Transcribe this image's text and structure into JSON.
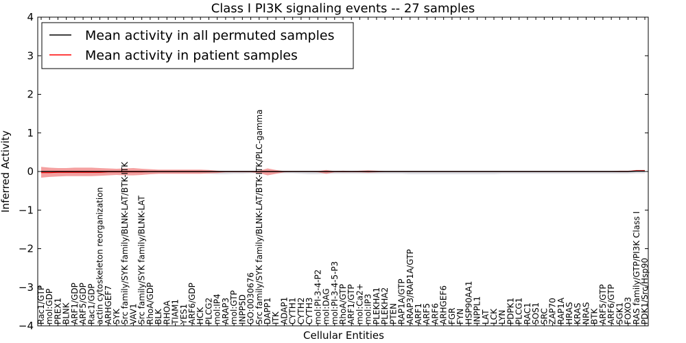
{
  "chart_data": {
    "type": "line",
    "title": "Class I PI3K signaling events -- 27 samples",
    "xlabel": "Cellular Entities",
    "ylabel": "Inferred Activity",
    "ylim": [
      -4,
      4
    ],
    "yticks": [
      -4,
      -3,
      -2,
      -1,
      0,
      1,
      2,
      3,
      4
    ],
    "ytick_labels": [
      "−4",
      "−3",
      "−2",
      "−1",
      "0",
      "1",
      "2",
      "3",
      "4"
    ],
    "legend": {
      "placement": "top-left",
      "entries": [
        {
          "label": "Mean activity in all permuted samples",
          "color": "#000000"
        },
        {
          "label": "Mean activity in patient samples",
          "color": "#ff0000"
        }
      ]
    },
    "colors": {
      "patient": "#ff0000",
      "patient_band": "#f08080",
      "permuted_band": "#c8c8d2",
      "permuted": "#000000"
    },
    "categories": [
      "Rac1/GTP",
      "mol:GDP",
      "PREX1",
      "BLNK",
      "ARF1/GDP",
      "ARF5/GDP",
      "Rac1/GDP",
      "actin cytoskeleton reorganization",
      "ARHGEF7",
      "SYK",
      "Src family/SYK family/BLNK-LAT/BTK-ITK",
      "VAV1",
      "Src family/SYK family/BLNK-LAT",
      "RhoA/GDP",
      "BLK",
      "RHOA",
      "TIAM1",
      "YES1",
      "ARF6/GDP",
      "HCK",
      "PLCG2",
      "mol:IP4",
      "ARAP3",
      "mol:GTP",
      "INPP5D",
      "GO:0030676",
      "Src family/SYK family/BLNK-LAT/BTK-ITK/PLC-gamma",
      "DAPP1",
      "ITK",
      "ADAP1",
      "CYTH1",
      "CYTH2",
      "CYTH3",
      "mol:PI-3-4-P2",
      "mol:DAG",
      "mol:PI-3-4-5-P3",
      "RhoA/GTP",
      "ARF1/GTP",
      "mol:Ca2+",
      "mol:IP3",
      "PLEKHA1",
      "PLEKHA2",
      "PTEN",
      "RAP1A/GTP",
      "ARAP3/RAP1A/GTP",
      "ARF1",
      "ARF5",
      "ARF6",
      "ARHGEF6",
      "FGR",
      "FYN",
      "HSP90AA1",
      "INPPL1",
      "LAT",
      "LCK",
      "LYN",
      "PDPK1",
      "PLCG1",
      "RAC1",
      "SOS1",
      "SRC",
      "ZAP70",
      "RAP1A",
      "HRAS",
      "KRAS",
      "NRAS",
      "BTK",
      "ARF5/GTP",
      "ARF6/GTP",
      "SGK1",
      "FOXO3",
      "RAS family/GTP/PI3K Class I",
      "PDK1/Src/Hsp90"
    ],
    "series": [
      {
        "name": "Mean activity in patient samples",
        "color": "#ff0000",
        "values": [
          -0.03,
          -0.03,
          -0.02,
          -0.02,
          -0.02,
          -0.02,
          -0.02,
          -0.02,
          -0.01,
          -0.01,
          -0.01,
          -0.01,
          -0.01,
          0,
          0,
          0,
          0,
          0,
          0,
          0,
          0,
          0,
          0,
          0,
          0,
          0,
          0,
          0,
          0,
          0,
          0,
          0,
          0,
          0,
          0,
          0,
          0,
          0,
          0,
          0,
          0,
          0,
          0,
          0,
          0,
          0,
          0,
          0,
          0,
          0,
          0,
          0,
          0,
          0,
          0,
          0,
          0,
          0,
          0,
          0,
          0,
          0,
          0,
          0,
          0,
          0,
          0,
          0,
          0,
          0,
          0,
          0.02,
          0.02
        ],
        "band_upper": [
          0.12,
          0.1,
          0.09,
          0.09,
          0.1,
          0.1,
          0.1,
          0.09,
          0.08,
          0.07,
          0.08,
          0.09,
          0.07,
          0.06,
          0.05,
          0.05,
          0.05,
          0.05,
          0.05,
          0.05,
          0.04,
          0.02,
          0.01,
          0.01,
          0.01,
          0.01,
          0.02,
          0.08,
          0.04,
          0.01,
          0.01,
          0.01,
          0.01,
          0.01,
          0.04,
          0.01,
          0.02,
          0.01,
          0.02,
          0.03,
          0.02,
          0.01,
          0.01,
          0.01,
          0.01,
          0.01,
          0.01,
          0.01,
          0.01,
          0.01,
          0.01,
          0.01,
          0.01,
          0.01,
          0.01,
          0.01,
          0.01,
          0.01,
          0.01,
          0.01,
          0.01,
          0.01,
          0.01,
          0.01,
          0.01,
          0.01,
          0.01,
          0.01,
          0.01,
          0.02,
          0.02,
          0.04,
          0.04
        ],
        "band_lower": [
          -0.16,
          -0.14,
          -0.13,
          -0.12,
          -0.12,
          -0.12,
          -0.12,
          -0.11,
          -0.1,
          -0.09,
          -0.1,
          -0.1,
          -0.09,
          -0.07,
          -0.06,
          -0.06,
          -0.06,
          -0.06,
          -0.06,
          -0.06,
          -0.05,
          -0.04,
          -0.02,
          -0.02,
          -0.02,
          -0.02,
          -0.04,
          -0.1,
          -0.06,
          -0.02,
          -0.01,
          -0.01,
          -0.01,
          -0.02,
          -0.06,
          -0.02,
          -0.02,
          -0.02,
          -0.02,
          -0.03,
          -0.02,
          -0.01,
          -0.01,
          -0.01,
          -0.01,
          -0.01,
          -0.01,
          -0.01,
          -0.01,
          -0.01,
          -0.01,
          -0.01,
          -0.01,
          -0.01,
          -0.01,
          -0.01,
          -0.01,
          -0.01,
          -0.01,
          -0.01,
          -0.01,
          -0.01,
          -0.01,
          -0.01,
          -0.01,
          -0.01,
          -0.01,
          -0.01,
          -0.01,
          0,
          0,
          0,
          0
        ]
      },
      {
        "name": "Mean activity in all permuted samples",
        "color": "#000000",
        "values": [
          0,
          0,
          0,
          0,
          0,
          0,
          0,
          0,
          0,
          0,
          0,
          0,
          0,
          0,
          0,
          0,
          0,
          0,
          0,
          0,
          0,
          0,
          0,
          0,
          0,
          0,
          0,
          0,
          0,
          0,
          0,
          0,
          0,
          0,
          0,
          0,
          0,
          0,
          0,
          0,
          0,
          0,
          0,
          0,
          0,
          0,
          0,
          0,
          0,
          0,
          0,
          0,
          0,
          0,
          0,
          0,
          0,
          0,
          0,
          0,
          0,
          0,
          0,
          0,
          0,
          0,
          0,
          0,
          0,
          0,
          0,
          0.01,
          0.01
        ],
        "band_upper": [
          0.02,
          0.02,
          0.02,
          0.02,
          0.02,
          0.02,
          0.02,
          0.02,
          0.02,
          0.02,
          0.02,
          0.02,
          0.02,
          0.02,
          0.02,
          0.02,
          0.02,
          0.02,
          0.02,
          0.02,
          0.02,
          0.02,
          0.02,
          0.02,
          0.02,
          0.02,
          0.02,
          0.02,
          0.02,
          0.02,
          0.02,
          0.02,
          0.02,
          0.02,
          0.02,
          0.02,
          0.02,
          0.02,
          0.02,
          0.02,
          0.02,
          0.02,
          0.02,
          0.02,
          0.02,
          0.02,
          0.02,
          0.02,
          0.02,
          0.02,
          0.02,
          0.02,
          0.02,
          0.02,
          0.02,
          0.02,
          0.02,
          0.02,
          0.02,
          0.02,
          0.02,
          0.02,
          0.02,
          0.02,
          0.02,
          0.02,
          0.02,
          0.02,
          0.02,
          0.02,
          0.02,
          0.03,
          0.03
        ],
        "band_lower": [
          -0.05,
          -0.05,
          -0.05,
          -0.05,
          -0.05,
          -0.05,
          -0.05,
          -0.05,
          -0.05,
          -0.05,
          -0.05,
          -0.05,
          -0.05,
          -0.05,
          -0.05,
          -0.05,
          -0.05,
          -0.05,
          -0.05,
          -0.05,
          -0.06,
          -0.07,
          -0.07,
          -0.06,
          -0.06,
          -0.05,
          -0.05,
          -0.05,
          -0.05,
          -0.05,
          -0.05,
          -0.06,
          -0.07,
          -0.07,
          -0.06,
          -0.06,
          -0.06,
          -0.06,
          -0.06,
          -0.06,
          -0.06,
          -0.06,
          -0.06,
          -0.06,
          -0.07,
          -0.07,
          -0.07,
          -0.07,
          -0.07,
          -0.07,
          -0.07,
          -0.07,
          -0.07,
          -0.07,
          -0.07,
          -0.06,
          -0.06,
          -0.06,
          -0.06,
          -0.06,
          -0.06,
          -0.06,
          -0.06,
          -0.06,
          -0.06,
          -0.06,
          -0.06,
          -0.06,
          -0.06,
          -0.06,
          -0.06,
          -0.05,
          -0.05
        ]
      }
    ]
  }
}
